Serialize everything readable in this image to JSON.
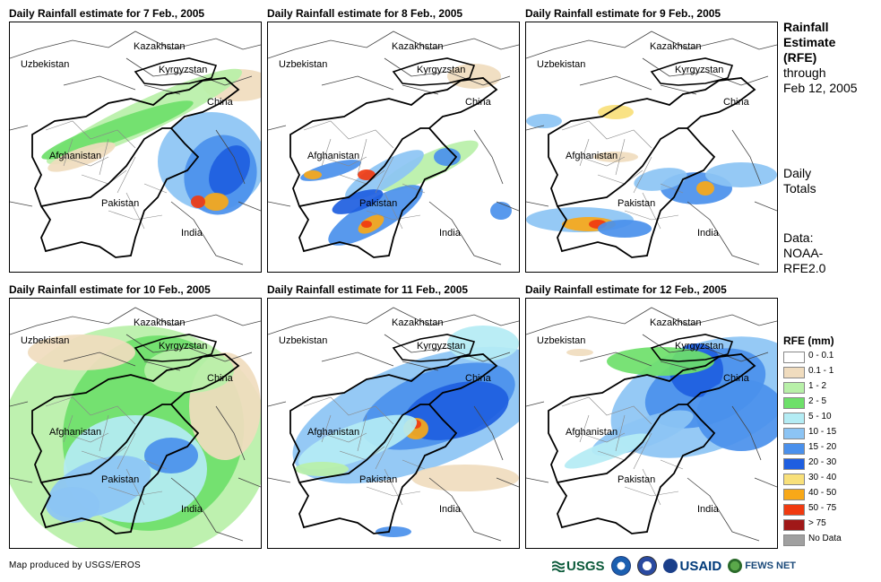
{
  "panels": [
    {
      "title": "Daily Rainfall estimate for 7 Feb., 2005",
      "labels": {
        "kazakhstan": "Kazakhstan",
        "uzbekistan": "Uzbekistan",
        "kyrgyzstan": "Kyrgyzstan",
        "china": "China",
        "afghanistan": "Afghanistan",
        "pakistan": "Pakistan",
        "india": "India"
      }
    },
    {
      "title": "Daily Rainfall estimate for 8 Feb., 2005",
      "labels": {
        "kazakhstan": "Kazakhstan",
        "uzbekistan": "Uzbekistan",
        "kyrgyzstan": "Kyrgyzstan",
        "china": "China",
        "afghanistan": "Afghanistan",
        "pakistan": "Pakistan",
        "india": "India"
      }
    },
    {
      "title": "Daily Rainfall estimate for 9 Feb., 2005",
      "labels": {
        "kazakhstan": "Kazakhstan",
        "uzbekistan": "Uzbekistan",
        "kyrgyzstan": "Kyrgyzstan",
        "china": "China",
        "afghanistan": "Afghanistan",
        "pakistan": "Pakistan",
        "india": "India"
      }
    },
    {
      "title": "Daily Rainfall estimate for 10 Feb., 2005",
      "labels": {
        "kazakhstan": "Kazakhstan",
        "uzbekistan": "Uzbekistan",
        "kyrgyzstan": "Kyrgyzstan",
        "china": "China",
        "afghanistan": "Afghanistan",
        "pakistan": "Pakistan",
        "india": "India"
      }
    },
    {
      "title": "Daily Rainfall estimate for 11 Feb., 2005",
      "labels": {
        "kazakhstan": "Kazakhstan",
        "uzbekistan": "Uzbekistan",
        "kyrgyzstan": "Kyrgyzstan",
        "china": "China",
        "afghanistan": "Afghanistan",
        "pakistan": "Pakistan",
        "india": "India"
      }
    },
    {
      "title": "Daily Rainfall estimate for 12 Feb., 2005",
      "labels": {
        "kazakhstan": "Kazakhstan",
        "uzbekistan": "Uzbekistan",
        "kyrgyzstan": "Kyrgyzstan",
        "china": "China",
        "afghanistan": "Afghanistan",
        "pakistan": "Pakistan",
        "india": "India"
      }
    }
  ],
  "sidebar": {
    "title_line1": "Rainfall",
    "title_line2": "Estimate",
    "title_line3": "(RFE)",
    "title_line4": "through",
    "title_line5": "Feb 12, 2005",
    "daily_line1": "Daily",
    "daily_line2": "Totals",
    "data_line1": "Data:",
    "data_line2": "NOAA-",
    "data_line3": "RFE2.0"
  },
  "legend": {
    "title": "RFE (mm)",
    "items": [
      {
        "label": "0 - 0.1",
        "color": "#ffffff"
      },
      {
        "label": "0.1 - 1",
        "color": "#f0dcbe"
      },
      {
        "label": "1 - 2",
        "color": "#b8f0a8"
      },
      {
        "label": "2 - 5",
        "color": "#6ee06a"
      },
      {
        "label": "5 - 10",
        "color": "#b4ecf4"
      },
      {
        "label": "10 - 15",
        "color": "#8cc4f4"
      },
      {
        "label": "15 - 20",
        "color": "#4a90ec"
      },
      {
        "label": "20 - 30",
        "color": "#1e5ee0"
      },
      {
        "label": "30 - 40",
        "color": "#f8e07a"
      },
      {
        "label": "40 - 50",
        "color": "#f8a818"
      },
      {
        "label": "50 - 75",
        "color": "#f03a10"
      },
      {
        "label": "> 75",
        "color": "#a01818"
      },
      {
        "label": "No Data",
        "color": "#a0a0a0"
      }
    ]
  },
  "footer": {
    "credit": "Map produced by USGS/EROS"
  },
  "logos": {
    "usgs": "USGS",
    "usaid": "USAID",
    "fewsnet": "FEWS NET"
  }
}
